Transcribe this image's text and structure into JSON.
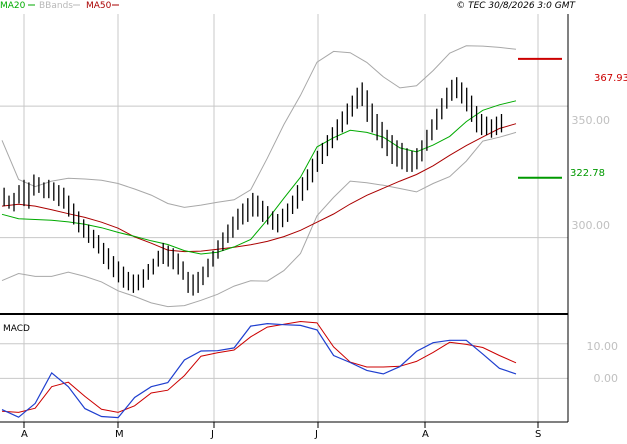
{
  "legend": {
    "ma20": "MA20",
    "bbands": "BBands",
    "ma50": "MA50",
    "copyright": "© TEC 30/8/2026 3:0 GMT"
  },
  "colors": {
    "background": "#ffffff",
    "grid": "#c8c8c8",
    "frame": "#000000",
    "price_bar": "#000000",
    "ma20": "#00aa00",
    "ma50": "#aa0000",
    "bbands": "#a8a8a8",
    "resistance": "#cc0000",
    "support": "#009900",
    "macd": "#1f3fcf",
    "signal": "#cc0000",
    "axis_text": "#c0c0c0"
  },
  "levels": {
    "resistance": {
      "value": 367.93,
      "label": "367.93"
    },
    "support": {
      "value": 322.78,
      "label": "322.78"
    }
  },
  "price_axis": {
    "ticks": [
      "350.00",
      "300.00"
    ],
    "tick_values": [
      350,
      300
    ],
    "range": [
      271,
      385
    ]
  },
  "macd_panel": {
    "title": "MACD",
    "ticks": [
      "10.00",
      "0.00"
    ],
    "tick_values": [
      10,
      0
    ],
    "range": [
      -12,
      18
    ]
  },
  "time_axis": {
    "labels": [
      "A",
      "M",
      "J",
      "J",
      "A",
      "S"
    ]
  },
  "chart_data": {
    "type": "line",
    "x_unit": "trading day",
    "n_days": 101,
    "series": [
      {
        "name": "MA20",
        "values": [
          [
            0,
            308.9
          ],
          [
            4,
            307.2
          ],
          [
            8,
            306.9
          ],
          [
            12,
            306.6
          ],
          [
            16,
            306.0
          ],
          [
            20,
            305.1
          ],
          [
            24,
            303.8
          ],
          [
            28,
            302.0
          ],
          [
            32,
            300.5
          ],
          [
            36,
            298.8
          ],
          [
            40,
            297.4
          ],
          [
            44,
            295.1
          ],
          [
            48,
            293.8
          ],
          [
            52,
            294.5
          ],
          [
            56,
            296.5
          ],
          [
            60,
            299.3
          ],
          [
            64,
            306.8
          ],
          [
            68,
            315.0
          ],
          [
            72,
            323.0
          ],
          [
            76,
            334.5
          ],
          [
            80,
            338.0
          ],
          [
            84,
            340.8
          ],
          [
            88,
            340.0
          ],
          [
            92,
            338.2
          ],
          [
            96,
            334.1
          ],
          [
            100,
            332.6
          ],
          [
            104,
            335.2
          ],
          [
            108,
            338.5
          ],
          [
            112,
            344.1
          ],
          [
            116,
            348.4
          ],
          [
            120,
            350.5
          ],
          [
            124,
            352.0
          ]
        ]
      },
      {
        "name": "MA50",
        "values": [
          [
            0,
            312.0
          ],
          [
            4,
            312.7
          ],
          [
            8,
            312.0
          ],
          [
            12,
            310.6
          ],
          [
            16,
            309.1
          ],
          [
            20,
            307.7
          ],
          [
            24,
            305.9
          ],
          [
            28,
            303.6
          ],
          [
            32,
            300.3
          ],
          [
            36,
            297.9
          ],
          [
            40,
            295.3
          ],
          [
            44,
            294.7
          ],
          [
            48,
            294.9
          ],
          [
            52,
            295.6
          ],
          [
            56,
            296.4
          ],
          [
            60,
            297.3
          ],
          [
            64,
            298.6
          ],
          [
            68,
            300.4
          ],
          [
            72,
            302.8
          ],
          [
            76,
            305.9
          ],
          [
            80,
            309.0
          ],
          [
            84,
            312.8
          ],
          [
            88,
            316.1
          ],
          [
            92,
            318.8
          ],
          [
            96,
            321.5
          ],
          [
            100,
            324.0
          ],
          [
            104,
            327.3
          ],
          [
            108,
            331.3
          ],
          [
            112,
            335.0
          ],
          [
            116,
            338.3
          ],
          [
            120,
            341.5
          ],
          [
            124,
            343.3
          ]
        ]
      },
      {
        "name": "BB upper",
        "values": [
          [
            0,
            337.0
          ],
          [
            4,
            322.1
          ],
          [
            8,
            319.4
          ],
          [
            12,
            321.5
          ],
          [
            16,
            322.6
          ],
          [
            20,
            322.3
          ],
          [
            24,
            321.8
          ],
          [
            28,
            320.6
          ],
          [
            32,
            318.5
          ],
          [
            36,
            316.2
          ],
          [
            40,
            313.0
          ],
          [
            44,
            311.5
          ],
          [
            48,
            312.4
          ],
          [
            52,
            313.5
          ],
          [
            56,
            314.4
          ],
          [
            60,
            318.2
          ],
          [
            64,
            330.2
          ],
          [
            68,
            343.0
          ],
          [
            72,
            354.1
          ],
          [
            76,
            366.7
          ],
          [
            80,
            370.8
          ],
          [
            84,
            370.3
          ],
          [
            88,
            366.6
          ],
          [
            92,
            361.1
          ],
          [
            96,
            356.9
          ],
          [
            100,
            357.7
          ],
          [
            104,
            363.5
          ],
          [
            108,
            370.1
          ],
          [
            112,
            372.9
          ],
          [
            116,
            372.8
          ],
          [
            120,
            372.3
          ],
          [
            124,
            371.6
          ]
        ]
      },
      {
        "name": "BB lower",
        "values": [
          [
            0,
            283.7
          ],
          [
            4,
            286.4
          ],
          [
            8,
            285.3
          ],
          [
            12,
            285.3
          ],
          [
            16,
            286.9
          ],
          [
            20,
            285.3
          ],
          [
            24,
            283.2
          ],
          [
            28,
            279.8
          ],
          [
            32,
            277.7
          ],
          [
            36,
            275.2
          ],
          [
            40,
            273.8
          ],
          [
            44,
            274.2
          ],
          [
            48,
            276.2
          ],
          [
            52,
            278.5
          ],
          [
            56,
            281.6
          ],
          [
            60,
            283.6
          ],
          [
            64,
            283.5
          ],
          [
            68,
            287.5
          ],
          [
            72,
            294.0
          ],
          [
            76,
            308.3
          ],
          [
            80,
            315.3
          ],
          [
            84,
            321.5
          ],
          [
            88,
            320.9
          ],
          [
            92,
            319.9
          ],
          [
            96,
            318.7
          ],
          [
            100,
            317.4
          ],
          [
            104,
            320.6
          ],
          [
            108,
            323.2
          ],
          [
            112,
            329.1
          ],
          [
            116,
            336.7
          ],
          [
            120,
            338.2
          ],
          [
            124,
            340.0
          ]
        ]
      },
      {
        "name": "MACD",
        "values": [
          [
            0,
            -9.0
          ],
          [
            4,
            -11.2
          ],
          [
            8,
            -7.2
          ],
          [
            12,
            1.6
          ],
          [
            16,
            -2.4
          ],
          [
            20,
            -8.7
          ],
          [
            24,
            -11.0
          ],
          [
            28,
            -11.3
          ],
          [
            32,
            -5.5
          ],
          [
            36,
            -2.4
          ],
          [
            40,
            -1.2
          ],
          [
            44,
            5.3
          ],
          [
            48,
            7.9
          ],
          [
            52,
            8.0
          ],
          [
            56,
            8.8
          ],
          [
            60,
            15.1
          ],
          [
            64,
            15.8
          ],
          [
            68,
            15.5
          ],
          [
            72,
            15.3
          ],
          [
            76,
            14.0
          ],
          [
            80,
            6.6
          ],
          [
            84,
            4.6
          ],
          [
            88,
            2.3
          ],
          [
            92,
            1.3
          ],
          [
            96,
            3.4
          ],
          [
            100,
            7.8
          ],
          [
            104,
            10.3
          ],
          [
            108,
            11.0
          ],
          [
            112,
            11.0
          ],
          [
            116,
            7.0
          ],
          [
            120,
            2.9
          ],
          [
            124,
            1.3
          ]
        ]
      },
      {
        "name": "Signal",
        "values": [
          [
            0,
            -9.5
          ],
          [
            4,
            -9.8
          ],
          [
            8,
            -8.6
          ],
          [
            12,
            -2.4
          ],
          [
            16,
            -1.1
          ],
          [
            20,
            -5.2
          ],
          [
            24,
            -8.9
          ],
          [
            28,
            -9.8
          ],
          [
            32,
            -7.9
          ],
          [
            36,
            -4.2
          ],
          [
            40,
            -3.4
          ],
          [
            44,
            0.8
          ],
          [
            48,
            6.4
          ],
          [
            52,
            7.4
          ],
          [
            56,
            8.2
          ],
          [
            60,
            12.0
          ],
          [
            64,
            14.8
          ],
          [
            68,
            15.6
          ],
          [
            72,
            16.4
          ],
          [
            76,
            16.0
          ],
          [
            80,
            9.1
          ],
          [
            84,
            4.7
          ],
          [
            88,
            3.3
          ],
          [
            92,
            3.3
          ],
          [
            96,
            3.5
          ],
          [
            100,
            4.9
          ],
          [
            104,
            7.5
          ],
          [
            108,
            10.4
          ],
          [
            112,
            9.8
          ],
          [
            116,
            8.9
          ],
          [
            120,
            6.6
          ],
          [
            124,
            4.5
          ]
        ]
      }
    ],
    "ohlc_note": "daily high/low bars",
    "bars": [
      [
        319,
        312
      ],
      [
        316,
        311
      ],
      [
        317,
        310
      ],
      [
        320,
        313
      ],
      [
        322,
        312
      ],
      [
        321,
        311
      ],
      [
        324,
        316
      ],
      [
        323,
        317
      ],
      [
        321,
        315
      ],
      [
        322,
        315
      ],
      [
        321,
        314
      ],
      [
        320,
        312
      ],
      [
        319,
        311
      ],
      [
        316,
        308
      ],
      [
        313,
        305
      ],
      [
        310,
        302
      ],
      [
        307,
        300
      ],
      [
        305,
        298
      ],
      [
        303,
        296
      ],
      [
        301,
        294
      ],
      [
        298,
        290
      ],
      [
        296,
        288
      ],
      [
        293,
        285
      ],
      [
        291,
        283
      ],
      [
        289,
        281
      ],
      [
        287,
        280
      ],
      [
        286,
        279
      ],
      [
        286,
        280
      ],
      [
        288,
        281
      ],
      [
        290,
        284
      ],
      [
        292,
        286
      ],
      [
        295,
        289
      ],
      [
        298,
        290
      ],
      [
        297,
        289
      ],
      [
        296,
        288
      ],
      [
        294,
        286
      ],
      [
        291,
        284
      ],
      [
        287,
        279
      ],
      [
        286,
        278
      ],
      [
        287,
        279
      ],
      [
        289,
        282
      ],
      [
        292,
        285
      ],
      [
        295,
        289
      ],
      [
        299,
        292
      ],
      [
        302,
        295
      ],
      [
        305,
        298
      ],
      [
        308,
        300
      ],
      [
        311,
        303
      ],
      [
        313,
        305
      ],
      [
        315,
        306
      ],
      [
        317,
        308
      ],
      [
        316,
        308
      ],
      [
        314,
        306
      ],
      [
        312,
        305
      ],
      [
        310,
        303
      ],
      [
        309,
        302
      ],
      [
        311,
        304
      ],
      [
        313,
        306
      ],
      [
        316,
        309
      ],
      [
        320,
        311
      ],
      [
        323,
        314
      ],
      [
        326,
        318
      ],
      [
        330,
        321
      ],
      [
        333,
        325
      ],
      [
        336,
        328
      ],
      [
        339,
        331
      ],
      [
        342,
        334
      ],
      [
        345,
        337
      ],
      [
        348,
        340
      ],
      [
        351,
        343
      ],
      [
        354,
        346
      ],
      [
        357,
        349
      ],
      [
        359,
        350
      ],
      [
        356,
        344
      ],
      [
        351,
        340
      ],
      [
        347,
        337
      ],
      [
        344,
        334
      ],
      [
        341,
        331
      ],
      [
        339,
        328
      ],
      [
        337,
        327
      ],
      [
        336,
        326
      ],
      [
        334,
        325
      ],
      [
        333,
        325
      ],
      [
        334,
        326
      ],
      [
        337,
        329
      ],
      [
        341,
        333
      ],
      [
        345,
        337
      ],
      [
        349,
        341
      ],
      [
        353,
        345
      ],
      [
        357,
        349
      ],
      [
        360,
        352
      ],
      [
        361,
        353
      ],
      [
        359,
        351
      ],
      [
        357,
        348
      ],
      [
        354,
        344
      ],
      [
        350,
        340
      ],
      [
        347,
        339
      ],
      [
        346,
        339
      ],
      [
        345,
        338
      ],
      [
        346,
        339
      ],
      [
        347,
        340
      ]
    ]
  }
}
